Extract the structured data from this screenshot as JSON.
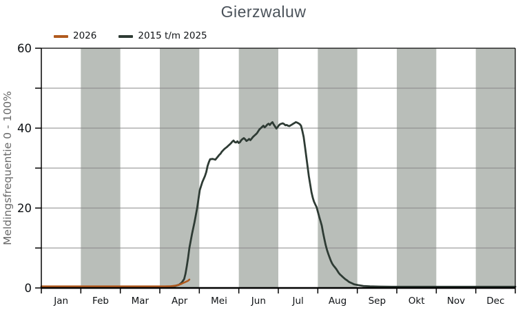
{
  "chart_data": {
    "type": "line",
    "title": "Gierzwaluw",
    "ylabel": "Meldingsfrequentie 0 - 100%",
    "ylim": [
      0,
      60
    ],
    "y_major_ticks": [
      0,
      20,
      40,
      60
    ],
    "y_minor_step": 10,
    "grid": "horizontal",
    "x_unit": "day-of-year",
    "xlim_days": [
      0,
      365
    ],
    "categories": [
      "Jan",
      "Feb",
      "Mar",
      "Apr",
      "Mei",
      "Jun",
      "Jul",
      "Aug",
      "Sep",
      "Okt",
      "Nov",
      "Dec"
    ],
    "shaded_month_indices": [
      1,
      3,
      5,
      7,
      9,
      11
    ],
    "legend_position": "top-left",
    "series": [
      {
        "name": "2026",
        "color": "#b05a1e",
        "points": [
          [
            0,
            0.4
          ],
          [
            20,
            0.4
          ],
          [
            40,
            0.4
          ],
          [
            60,
            0.4
          ],
          [
            80,
            0.4
          ],
          [
            95,
            0.4
          ],
          [
            100,
            0.45
          ],
          [
            104,
            0.6
          ],
          [
            107,
            0.9
          ],
          [
            109,
            1.2
          ],
          [
            111,
            1.5
          ],
          [
            113,
            1.8
          ],
          [
            114,
            2.1
          ]
        ]
      },
      {
        "name": "2015 t/m 2025",
        "color": "#2e3b34",
        "points": [
          [
            0,
            0.3
          ],
          [
            15,
            0.3
          ],
          [
            30,
            0.3
          ],
          [
            45,
            0.3
          ],
          [
            60,
            0.3
          ],
          [
            75,
            0.3
          ],
          [
            90,
            0.3
          ],
          [
            98,
            0.35
          ],
          [
            103,
            0.5
          ],
          [
            106,
            0.8
          ],
          [
            108,
            1.3
          ],
          [
            110,
            2.2
          ],
          [
            111,
            3.5
          ],
          [
            112,
            5.4
          ],
          [
            113,
            7.5
          ],
          [
            114,
            10
          ],
          [
            116,
            13.5
          ],
          [
            118,
            16.5
          ],
          [
            120,
            20
          ],
          [
            122,
            24.5
          ],
          [
            124,
            26.5
          ],
          [
            126,
            28
          ],
          [
            127,
            29
          ],
          [
            128,
            30.5
          ],
          [
            129,
            31.5
          ],
          [
            130,
            32.2
          ],
          [
            132,
            32.3
          ],
          [
            134,
            32.1
          ],
          [
            135,
            32.5
          ],
          [
            136,
            32.9
          ],
          [
            137,
            33.3
          ],
          [
            138,
            33.6
          ],
          [
            139,
            34.1
          ],
          [
            141,
            34.8
          ],
          [
            143,
            35.3
          ],
          [
            144,
            35.6
          ],
          [
            145,
            35.9
          ],
          [
            146,
            36.2
          ],
          [
            147,
            36.6
          ],
          [
            148,
            36.9
          ],
          [
            149,
            36.5
          ],
          [
            150,
            36.4
          ],
          [
            151,
            36.7
          ],
          [
            152,
            36.3
          ],
          [
            153,
            36.5
          ],
          [
            154,
            37
          ],
          [
            155,
            37.3
          ],
          [
            156,
            37.5
          ],
          [
            157,
            37.2
          ],
          [
            158,
            36.8
          ],
          [
            159,
            37
          ],
          [
            160,
            37.3
          ],
          [
            161,
            37
          ],
          [
            162,
            37.4
          ],
          [
            163,
            37.8
          ],
          [
            164,
            38.1
          ],
          [
            165,
            38.4
          ],
          [
            166,
            38.7
          ],
          [
            167,
            39.2
          ],
          [
            168,
            39.7
          ],
          [
            169,
            40
          ],
          [
            170,
            40.3
          ],
          [
            171,
            40.6
          ],
          [
            172,
            40.2
          ],
          [
            173,
            40.5
          ],
          [
            174,
            40.9
          ],
          [
            175,
            41.1
          ],
          [
            176,
            40.8
          ],
          [
            177,
            41.2
          ],
          [
            178,
            41.5
          ],
          [
            179,
            40.9
          ],
          [
            180,
            40.4
          ],
          [
            181,
            39.9
          ],
          [
            182,
            40.3
          ],
          [
            183,
            40.7
          ],
          [
            184,
            41
          ],
          [
            185,
            41.1
          ],
          [
            186,
            41.2
          ],
          [
            187,
            41
          ],
          [
            188,
            40.7
          ],
          [
            189,
            40.8
          ],
          [
            190,
            40.6
          ],
          [
            191,
            40.5
          ],
          [
            192,
            40.7
          ],
          [
            193,
            40.9
          ],
          [
            194,
            41.1
          ],
          [
            195,
            41.3
          ],
          [
            196,
            41.5
          ],
          [
            197,
            41.4
          ],
          [
            198,
            41.2
          ],
          [
            199,
            41
          ],
          [
            200,
            40.6
          ],
          [
            201,
            39.3
          ],
          [
            202,
            37.8
          ],
          [
            203,
            35.5
          ],
          [
            204,
            33
          ],
          [
            205,
            30.5
          ],
          [
            206,
            28
          ],
          [
            207,
            26
          ],
          [
            208,
            24
          ],
          [
            209,
            22.6
          ],
          [
            210,
            21.6
          ],
          [
            211,
            20.9
          ],
          [
            212,
            20.2
          ],
          [
            213,
            19
          ],
          [
            214,
            17.8
          ],
          [
            215,
            16.7
          ],
          [
            216,
            15.6
          ],
          [
            217,
            13.8
          ],
          [
            218,
            12.2
          ],
          [
            219,
            10.7
          ],
          [
            220,
            9.5
          ],
          [
            221,
            8.5
          ],
          [
            222,
            7.6
          ],
          [
            223,
            6.8
          ],
          [
            224,
            6.1
          ],
          [
            225,
            5.6
          ],
          [
            226,
            5.2
          ],
          [
            227,
            4.8
          ],
          [
            228,
            4.3
          ],
          [
            229,
            3.8
          ],
          [
            230,
            3.4
          ],
          [
            231,
            3.1
          ],
          [
            232,
            2.8
          ],
          [
            233,
            2.5
          ],
          [
            234,
            2.2
          ],
          [
            235,
            2
          ],
          [
            237,
            1.5
          ],
          [
            239,
            1.2
          ],
          [
            241,
            0.9
          ],
          [
            244,
            0.7
          ],
          [
            248,
            0.5
          ],
          [
            253,
            0.4
          ],
          [
            260,
            0.35
          ],
          [
            270,
            0.3
          ],
          [
            285,
            0.3
          ],
          [
            300,
            0.3
          ],
          [
            315,
            0.3
          ],
          [
            330,
            0.3
          ],
          [
            345,
            0.3
          ],
          [
            365,
            0.3
          ]
        ]
      }
    ]
  },
  "colors": {
    "band": "#b9beb9",
    "grid": "#878787",
    "axis": "#000000",
    "title_text": "#4a525a",
    "tick_label": "#0d1013",
    "axis_label": "#686868"
  }
}
